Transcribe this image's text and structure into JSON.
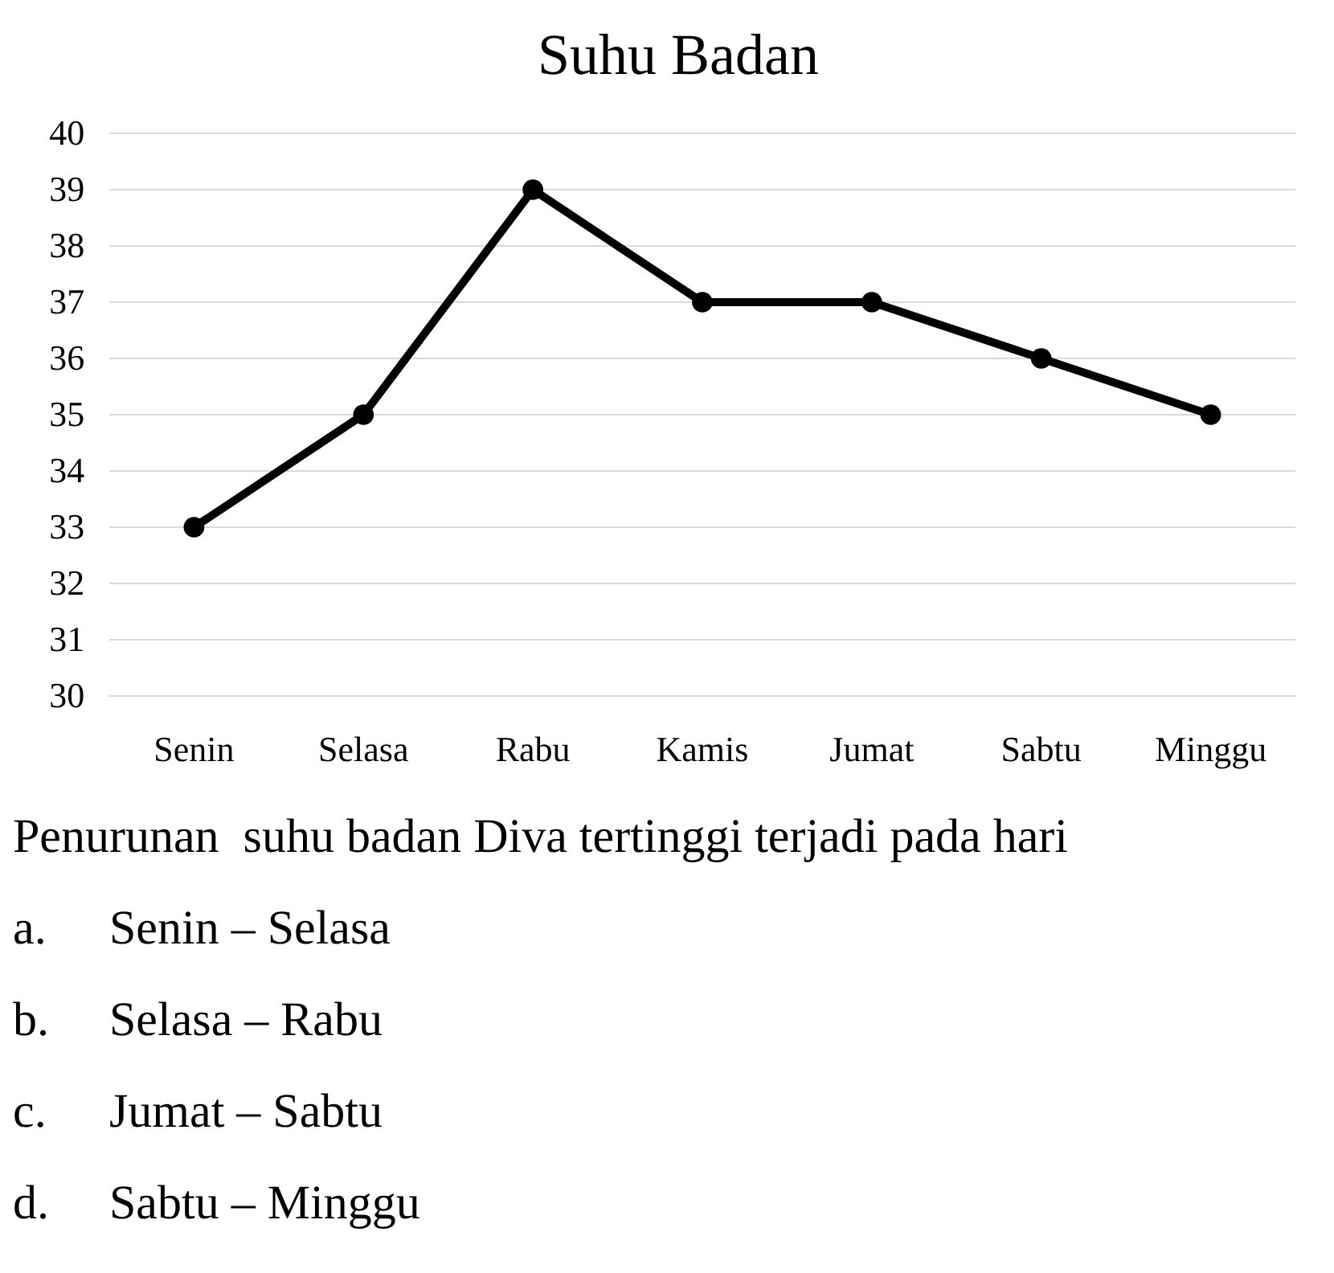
{
  "chart_data": {
    "type": "line",
    "title": "Suhu Badan",
    "categories": [
      "Senin",
      "Selasa",
      "Rabu",
      "Kamis",
      "Jumat",
      "Sabtu",
      "Minggu"
    ],
    "series": [
      {
        "color": "#000000",
        "values": [
          33,
          35,
          39,
          37,
          37,
          36,
          35
        ]
      }
    ],
    "ylim": [
      30,
      40
    ],
    "yticks": [
      30,
      31,
      32,
      33,
      34,
      35,
      36,
      37,
      38,
      39,
      40
    ],
    "grid": "y",
    "marker": "circle",
    "line_style": "solid",
    "annotations": [
      "Penurunan  suhu badan Diva tertinggi terjadi pada hari",
      "a. Senin – Selasa",
      "b. Selasa – Rabu",
      "c. Jumat – Sabtu",
      "d. Sabtu – Minggu"
    ]
  }
}
